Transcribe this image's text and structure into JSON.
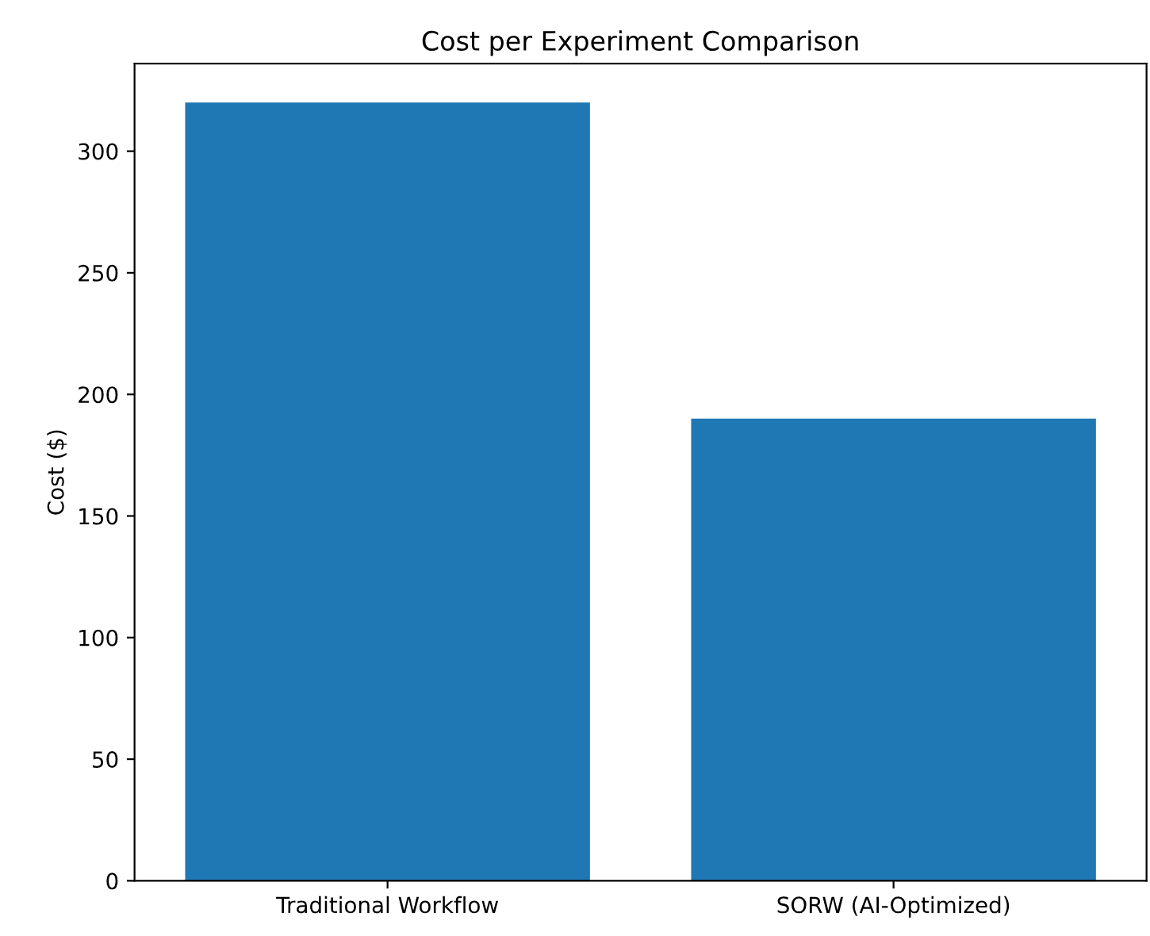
{
  "chart_data": {
    "type": "bar",
    "title": "Cost per Experiment Comparison",
    "ylabel": "Cost ($)",
    "categories": [
      "Traditional Workflow",
      "SORW (AI-Optimized)"
    ],
    "values": [
      320,
      190
    ],
    "color": "#1f77b4",
    "ylim": [
      0,
      336
    ],
    "yticks": [
      0,
      50,
      100,
      150,
      200,
      250,
      300
    ],
    "grid": false
  }
}
